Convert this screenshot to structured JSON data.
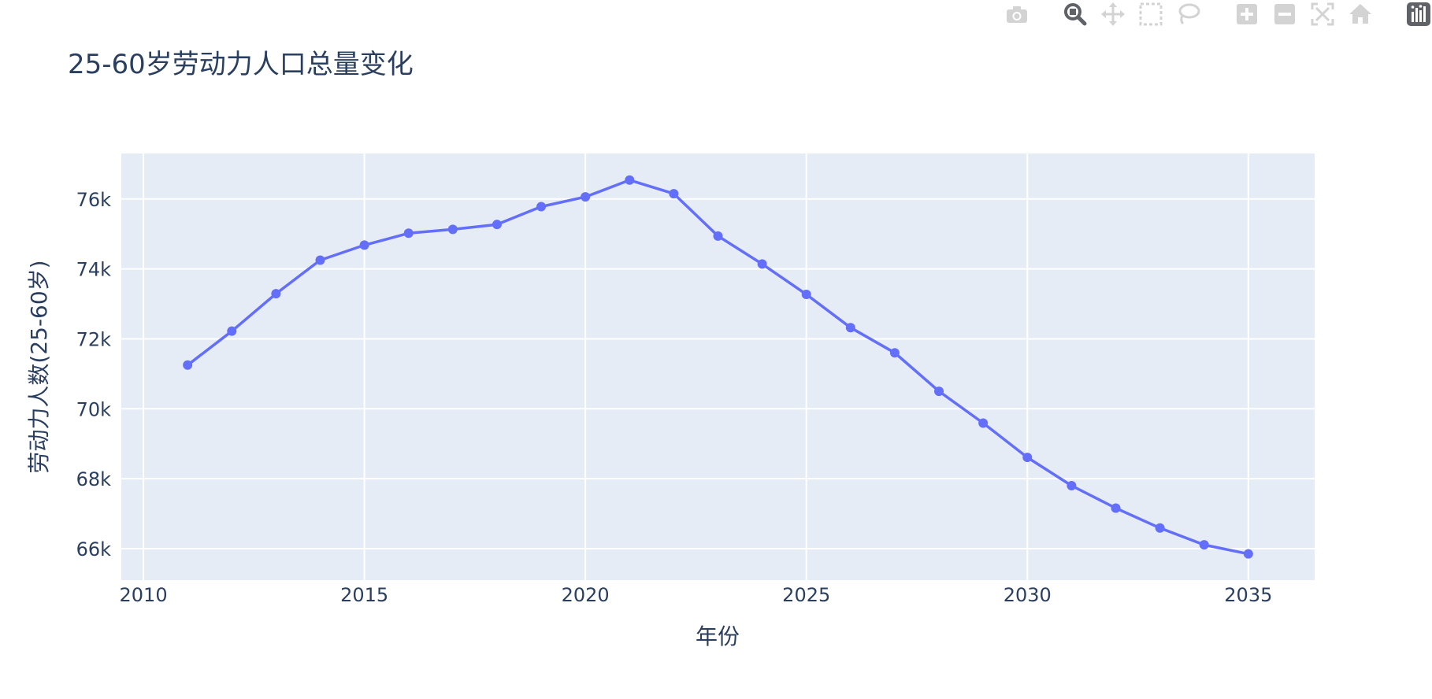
{
  "chart_data": {
    "type": "line",
    "title": "25-60岁劳动力人口总量变化",
    "xlabel": "年份",
    "ylabel": "劳动力人数(25-60岁)",
    "xlim": [
      2009.5,
      2036.5
    ],
    "ylim": [
      65100,
      77300
    ],
    "x_ticks": [
      2010,
      2015,
      2020,
      2025,
      2030,
      2035
    ],
    "y_ticks": [
      66000,
      68000,
      70000,
      72000,
      74000,
      76000
    ],
    "x_tick_labels": [
      "2010",
      "2015",
      "2020",
      "2025",
      "2030",
      "2035"
    ],
    "y_tick_labels": [
      "66k",
      "68k",
      "70k",
      "72k",
      "74k",
      "76k"
    ],
    "grid": true,
    "colors": {
      "line": "#636efa",
      "plot_bg": "#e5ecf6",
      "grid": "#ffffff",
      "text": "#2a3f5f",
      "modebar_icon": "#d3d3d3",
      "modebar_active": "#5f6368"
    },
    "series": [
      {
        "x": [
          2011,
          2012,
          2013,
          2014,
          2015,
          2016,
          2017,
          2018,
          2019,
          2020,
          2021,
          2022,
          2023,
          2024,
          2025,
          2026,
          2027,
          2028,
          2029,
          2030,
          2031,
          2032,
          2033,
          2034,
          2035
        ],
        "values": [
          71250,
          72220,
          73290,
          74250,
          74680,
          75020,
          75130,
          75270,
          75780,
          76060,
          76540,
          76150,
          74940,
          74140,
          73270,
          72320,
          71600,
          70500,
          69590,
          68610,
          67800,
          67160,
          66590,
          66110,
          65850
        ]
      }
    ]
  },
  "modebar": {
    "icons": [
      "camera-icon",
      "zoom-icon",
      "pan-icon",
      "box-select-icon",
      "lasso-icon",
      "zoom-in-icon",
      "zoom-out-icon",
      "autoscale-icon",
      "reset-axes-icon",
      "plotly-logo-icon"
    ]
  }
}
